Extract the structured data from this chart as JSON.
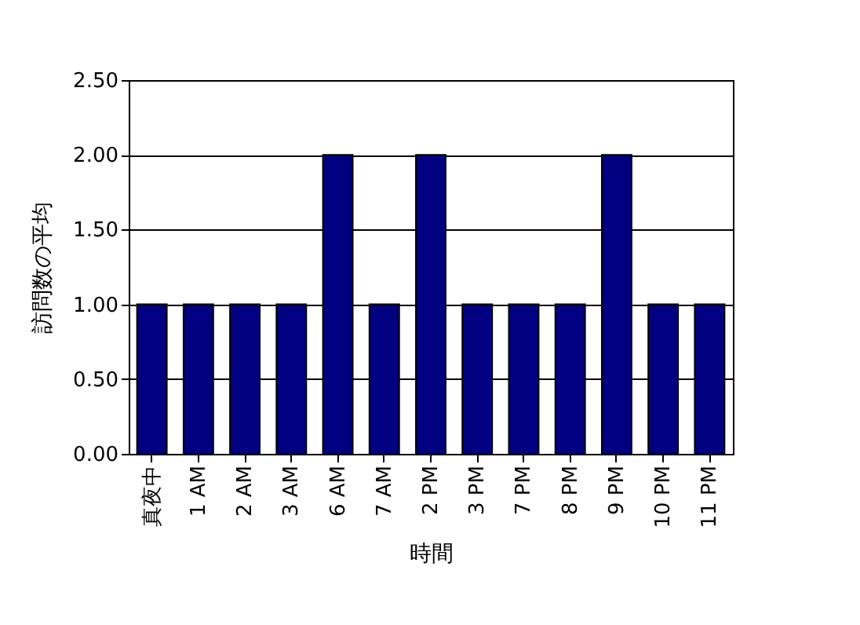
{
  "chart_data": {
    "type": "bar",
    "xlabel": "時間",
    "ylabel": "訪問数の平均",
    "categories": [
      "真夜中",
      "1 AM",
      "2 AM",
      "3 AM",
      "6 AM",
      "7 AM",
      "2 PM",
      "3 PM",
      "7 PM",
      "8 PM",
      "9 PM",
      "10 PM",
      "11 PM"
    ],
    "values": [
      1,
      1,
      1,
      1,
      2,
      1,
      2,
      1,
      1,
      1,
      2,
      1,
      1
    ],
    "color": "#000080",
    "ylim": [
      0,
      2.5
    ],
    "yticks": [
      {
        "value": 0,
        "label": "0.00"
      },
      {
        "value": 0.5,
        "label": "0.50"
      },
      {
        "value": 1,
        "label": "1.00"
      },
      {
        "value": 1.5,
        "label": "1.50"
      },
      {
        "value": 2,
        "label": "2.00"
      },
      {
        "value": 2.5,
        "label": "2.50"
      }
    ],
    "grid": "y"
  }
}
